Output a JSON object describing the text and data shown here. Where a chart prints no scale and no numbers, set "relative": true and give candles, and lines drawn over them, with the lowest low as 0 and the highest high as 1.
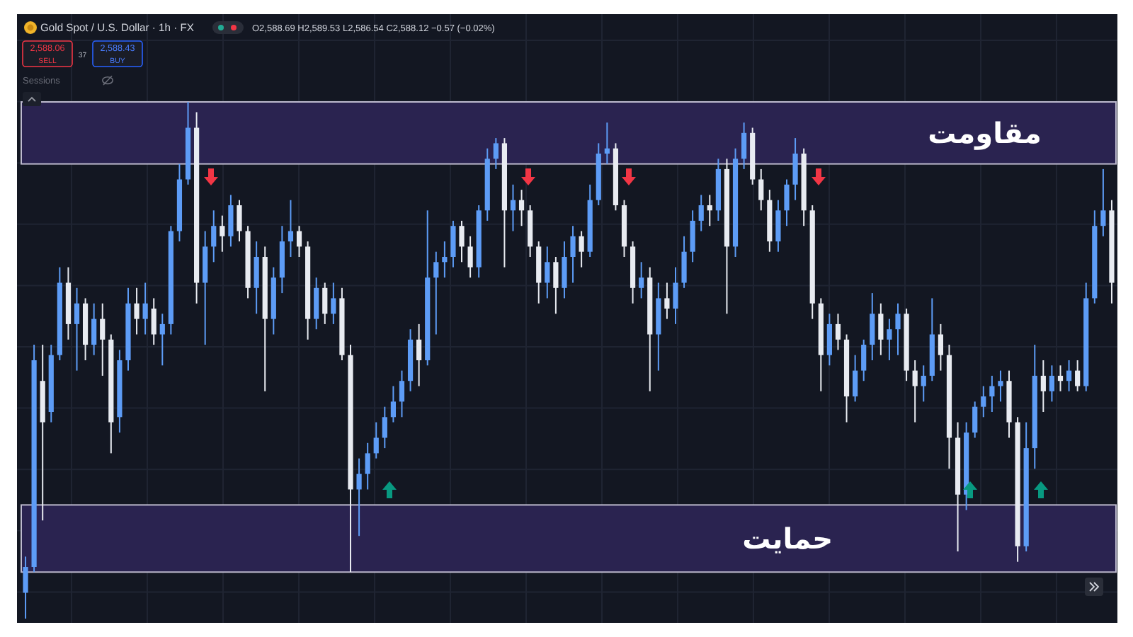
{
  "chart_data": {
    "type": "candlestick",
    "relative": true,
    "title": "Gold Spot / U.S. Dollar · 1h · FX",
    "subtitle": "O2,588.69 H2,589.53 L2,586.54 C2,588.12 −0.57 (−0.02%)",
    "annotations": [
      "2,588.06",
      "SELL",
      "37",
      "2,588.43",
      "BUY",
      "Sessions"
    ],
    "grid": true,
    "categories": [
      null,
      null,
      null,
      null,
      null,
      null,
      null,
      null,
      null,
      null,
      null,
      null,
      null,
      null,
      null,
      null,
      null,
      null,
      null,
      null,
      null,
      null,
      null,
      null,
      null,
      null,
      null,
      null,
      null,
      null,
      null,
      null,
      null,
      null,
      null,
      null,
      null,
      null,
      null,
      null,
      null,
      null,
      null,
      null,
      null,
      null,
      null,
      null,
      null,
      null,
      null,
      null,
      null,
      null,
      null,
      null,
      null,
      null,
      null,
      null,
      null,
      null,
      null,
      null,
      null,
      null,
      null,
      null,
      null,
      null,
      null,
      null,
      null,
      null,
      null,
      null,
      null,
      null,
      null,
      null,
      null,
      null,
      null,
      null,
      null,
      null,
      null,
      null,
      null,
      null,
      null,
      null,
      null,
      null,
      null,
      null,
      null,
      null,
      null,
      null,
      null,
      null,
      null,
      null,
      null,
      null,
      null,
      null,
      null,
      null,
      null,
      null,
      null,
      null,
      null,
      null,
      null,
      null,
      null,
      null,
      null,
      null,
      null,
      null,
      null,
      null,
      null,
      null
    ],
    "ohlc": [
      [
        0.05,
        0.12,
        0,
        0.1
      ],
      [
        0.1,
        0.53,
        0.09,
        0.5
      ],
      [
        0.46,
        0.53,
        0.19,
        0.38
      ],
      [
        0.4,
        0.53,
        0.38,
        0.51
      ],
      [
        0.51,
        0.68,
        0.5,
        0.65
      ],
      [
        0.65,
        0.68,
        0.54,
        0.57
      ],
      [
        0.57,
        0.64,
        0.48,
        0.61
      ],
      [
        0.61,
        0.62,
        0.5,
        0.53
      ],
      [
        0.53,
        0.61,
        0.51,
        0.58
      ],
      [
        0.58,
        0.61,
        0.47,
        0.54
      ],
      [
        0.54,
        0.55,
        0.32,
        0.38
      ],
      [
        0.39,
        0.52,
        0.36,
        0.5
      ],
      [
        0.5,
        0.64,
        0.48,
        0.61
      ],
      [
        0.61,
        0.64,
        0.55,
        0.58
      ],
      [
        0.58,
        0.65,
        0.55,
        0.61
      ],
      [
        0.6,
        0.62,
        0.53,
        0.55
      ],
      [
        0.55,
        0.59,
        0.49,
        0.57
      ],
      [
        0.57,
        0.76,
        0.55,
        0.75
      ],
      [
        0.75,
        0.88,
        0.73,
        0.85
      ],
      [
        0.85,
        1,
        0.84,
        0.95
      ],
      [
        0.95,
        0.98,
        0.61,
        0.65
      ],
      [
        0.65,
        0.75,
        0.53,
        0.72
      ],
      [
        0.72,
        0.79,
        0.69,
        0.76
      ],
      [
        0.76,
        0.78,
        0.71,
        0.74
      ],
      [
        0.74,
        0.82,
        0.72,
        0.8
      ],
      [
        0.8,
        0.81,
        0.73,
        0.75
      ],
      [
        0.75,
        0.76,
        0.62,
        0.64
      ],
      [
        0.64,
        0.73,
        0.59,
        0.7
      ],
      [
        0.7,
        0.72,
        0.44,
        0.58
      ],
      [
        0.58,
        0.68,
        0.55,
        0.66
      ],
      [
        0.66,
        0.76,
        0.63,
        0.73
      ],
      [
        0.73,
        0.81,
        0.7,
        0.75
      ],
      [
        0.75,
        0.76,
        0.7,
        0.72
      ],
      [
        0.72,
        0.73,
        0.54,
        0.58
      ],
      [
        0.58,
        0.66,
        0.56,
        0.64
      ],
      [
        0.64,
        0.65,
        0.57,
        0.59
      ],
      [
        0.59,
        0.65,
        0.57,
        0.62
      ],
      [
        0.62,
        0.64,
        0.5,
        0.51
      ],
      [
        0.51,
        0.53,
        0.09,
        0.25
      ],
      [
        0.25,
        0.31,
        0.16,
        0.28
      ],
      [
        0.28,
        0.34,
        0.25,
        0.32
      ],
      [
        0.32,
        0.38,
        0.31,
        0.35
      ],
      [
        0.35,
        0.41,
        0.33,
        0.39
      ],
      [
        0.39,
        0.45,
        0.38,
        0.42
      ],
      [
        0.42,
        0.48,
        0.39,
        0.46
      ],
      [
        0.46,
        0.56,
        0.44,
        0.54
      ],
      [
        0.54,
        0.57,
        0.45,
        0.5
      ],
      [
        0.5,
        0.79,
        0.49,
        0.66
      ],
      [
        0.66,
        0.71,
        0.55,
        0.69
      ],
      [
        0.69,
        0.73,
        0.66,
        0.7
      ],
      [
        0.7,
        0.77,
        0.68,
        0.76
      ],
      [
        0.76,
        0.77,
        0.69,
        0.72
      ],
      [
        0.72,
        0.74,
        0.66,
        0.68
      ],
      [
        0.68,
        0.8,
        0.66,
        0.79
      ],
      [
        0.79,
        0.91,
        0.77,
        0.89
      ],
      [
        0.89,
        0.93,
        0.87,
        0.92
      ],
      [
        0.92,
        0.93,
        0.68,
        0.79
      ],
      [
        0.79,
        0.84,
        0.75,
        0.81
      ],
      [
        0.81,
        0.83,
        0.76,
        0.79
      ],
      [
        0.79,
        0.8,
        0.7,
        0.72
      ],
      [
        0.72,
        0.73,
        0.61,
        0.65
      ],
      [
        0.65,
        0.72,
        0.62,
        0.69
      ],
      [
        0.69,
        0.7,
        0.59,
        0.64
      ],
      [
        0.64,
        0.73,
        0.62,
        0.7
      ],
      [
        0.7,
        0.76,
        0.65,
        0.74
      ],
      [
        0.74,
        0.75,
        0.68,
        0.71
      ],
      [
        0.71,
        0.84,
        0.7,
        0.81
      ],
      [
        0.81,
        0.92,
        0.8,
        0.9
      ],
      [
        0.9,
        0.96,
        0.88,
        0.91
      ],
      [
        0.91,
        0.92,
        0.79,
        0.8
      ],
      [
        0.8,
        0.81,
        0.7,
        0.72
      ],
      [
        0.72,
        0.73,
        0.61,
        0.64
      ],
      [
        0.64,
        0.69,
        0.62,
        0.66
      ],
      [
        0.66,
        0.68,
        0.44,
        0.55
      ],
      [
        0.55,
        0.65,
        0.48,
        0.62
      ],
      [
        0.62,
        0.65,
        0.58,
        0.6
      ],
      [
        0.6,
        0.68,
        0.57,
        0.65
      ],
      [
        0.65,
        0.74,
        0.64,
        0.71
      ],
      [
        0.71,
        0.79,
        0.69,
        0.77
      ],
      [
        0.77,
        0.82,
        0.75,
        0.8
      ],
      [
        0.8,
        0.82,
        0.76,
        0.79
      ],
      [
        0.79,
        0.89,
        0.77,
        0.87
      ],
      [
        0.87,
        0.89,
        0.59,
        0.72
      ],
      [
        0.72,
        0.91,
        0.7,
        0.89
      ],
      [
        0.89,
        0.96,
        0.87,
        0.94
      ],
      [
        0.94,
        0.95,
        0.84,
        0.85
      ],
      [
        0.85,
        0.87,
        0.79,
        0.81
      ],
      [
        0.81,
        0.83,
        0.71,
        0.73
      ],
      [
        0.73,
        0.81,
        0.71,
        0.79
      ],
      [
        0.79,
        0.85,
        0.76,
        0.84
      ],
      [
        0.84,
        0.93,
        0.81,
        0.9
      ],
      [
        0.9,
        0.91,
        0.76,
        0.79
      ],
      [
        0.79,
        0.8,
        0.58,
        0.61
      ],
      [
        0.61,
        0.62,
        0.44,
        0.51
      ],
      [
        0.51,
        0.59,
        0.49,
        0.57
      ],
      [
        0.57,
        0.59,
        0.52,
        0.54
      ],
      [
        0.54,
        0.55,
        0.38,
        0.43
      ],
      [
        0.43,
        0.51,
        0.42,
        0.48
      ],
      [
        0.48,
        0.54,
        0.46,
        0.53
      ],
      [
        0.53,
        0.63,
        0.5,
        0.59
      ],
      [
        0.59,
        0.61,
        0.51,
        0.54
      ],
      [
        0.54,
        0.58,
        0.5,
        0.56
      ],
      [
        0.56,
        0.61,
        0.51,
        0.59
      ],
      [
        0.59,
        0.6,
        0.46,
        0.48
      ],
      [
        0.48,
        0.5,
        0.38,
        0.45
      ],
      [
        0.45,
        0.49,
        0.42,
        0.47
      ],
      [
        0.47,
        0.62,
        0.46,
        0.55
      ],
      [
        0.55,
        0.57,
        0.48,
        0.51
      ],
      [
        0.51,
        0.53,
        0.29,
        0.35
      ],
      [
        0.35,
        0.38,
        0.13,
        0.24
      ],
      [
        0.24,
        0.38,
        0.21,
        0.36
      ],
      [
        0.36,
        0.42,
        0.35,
        0.41
      ],
      [
        0.41,
        0.45,
        0.39,
        0.43
      ],
      [
        0.43,
        0.47,
        0.4,
        0.45
      ],
      [
        0.45,
        0.48,
        0.42,
        0.46
      ],
      [
        0.46,
        0.48,
        0.35,
        0.38
      ],
      [
        0.38,
        0.39,
        0.11,
        0.14
      ],
      [
        0.14,
        0.38,
        0.13,
        0.33
      ],
      [
        0.33,
        0.53,
        0.29,
        0.47
      ],
      [
        0.47,
        0.5,
        0.4,
        0.44
      ],
      [
        0.44,
        0.49,
        0.42,
        0.47
      ],
      [
        0.47,
        0.49,
        0.44,
        0.46
      ],
      [
        0.46,
        0.5,
        0.44,
        0.48
      ],
      [
        0.48,
        0.5,
        0.44,
        0.45
      ],
      [
        0.45,
        0.65,
        0.44,
        0.62
      ],
      [
        0.62,
        0.79,
        0.61,
        0.76
      ],
      [
        0.76,
        0.87,
        0.74,
        0.79
      ],
      [
        0.79,
        0.81,
        0.61,
        0.65
      ]
    ],
    "colors": [
      "#5d9cf6",
      "#5d9cf6",
      "#e8ebf1",
      "#5d9cf6",
      "#5d9cf6",
      "#e8ebf1",
      "#5d9cf6",
      "#e8ebf1",
      "#5d9cf6",
      "#e8ebf1",
      "#e8ebf1",
      "#5d9cf6",
      "#5d9cf6",
      "#e8ebf1",
      "#5d9cf6",
      "#e8ebf1",
      "#5d9cf6",
      "#5d9cf6",
      "#5d9cf6",
      "#5d9cf6",
      "#e8ebf1",
      "#5d9cf6",
      "#5d9cf6",
      "#e8ebf1",
      "#5d9cf6",
      "#e8ebf1",
      "#e8ebf1",
      "#5d9cf6",
      "#e8ebf1",
      "#5d9cf6",
      "#5d9cf6",
      "#5d9cf6",
      "#e8ebf1",
      "#e8ebf1",
      "#5d9cf6",
      "#e8ebf1",
      "#5d9cf6",
      "#e8ebf1",
      "#e8ebf1",
      "#5d9cf6",
      "#5d9cf6",
      "#5d9cf6",
      "#5d9cf6",
      "#5d9cf6",
      "#5d9cf6",
      "#5d9cf6",
      "#e8ebf1",
      "#5d9cf6",
      "#5d9cf6",
      "#5d9cf6",
      "#5d9cf6",
      "#e8ebf1",
      "#e8ebf1",
      "#5d9cf6",
      "#5d9cf6",
      "#5d9cf6",
      "#e8ebf1",
      "#5d9cf6",
      "#e8ebf1",
      "#e8ebf1",
      "#e8ebf1",
      "#5d9cf6",
      "#e8ebf1",
      "#5d9cf6",
      "#5d9cf6",
      "#e8ebf1",
      "#5d9cf6",
      "#5d9cf6",
      "#5d9cf6",
      "#e8ebf1",
      "#e8ebf1",
      "#e8ebf1",
      "#5d9cf6",
      "#e8ebf1",
      "#5d9cf6",
      "#e8ebf1",
      "#5d9cf6",
      "#5d9cf6",
      "#5d9cf6",
      "#5d9cf6",
      "#e8ebf1",
      "#5d9cf6",
      "#e8ebf1",
      "#5d9cf6",
      "#5d9cf6",
      "#e8ebf1",
      "#e8ebf1",
      "#e8ebf1",
      "#5d9cf6",
      "#5d9cf6",
      "#5d9cf6",
      "#e8ebf1",
      "#e8ebf1",
      "#e8ebf1",
      "#5d9cf6",
      "#e8ebf1",
      "#e8ebf1",
      "#5d9cf6",
      "#5d9cf6",
      "#5d9cf6",
      "#e8ebf1",
      "#5d9cf6",
      "#5d9cf6",
      "#e8ebf1",
      "#e8ebf1",
      "#5d9cf6",
      "#5d9cf6",
      "#e8ebf1",
      "#e8ebf1",
      "#e8ebf1",
      "#5d9cf6",
      "#5d9cf6",
      "#5d9cf6",
      "#5d9cf6",
      "#5d9cf6",
      "#e8ebf1",
      "#e8ebf1",
      "#5d9cf6",
      "#5d9cf6",
      "#e8ebf1",
      "#5d9cf6",
      "#e8ebf1",
      "#5d9cf6",
      "#e8ebf1",
      "#5d9cf6",
      "#5d9cf6",
      "#5d9cf6",
      "#e8ebf1"
    ],
    "bands": [
      {
        "axis": "y",
        "from": 0.88,
        "to": 1,
        "label": "مقاومت",
        "color": "#2a2350"
      },
      {
        "axis": "y",
        "from": 0.09,
        "to": 0.22,
        "label": "حمایت",
        "color": "#2a2350"
      }
    ]
  }
}
